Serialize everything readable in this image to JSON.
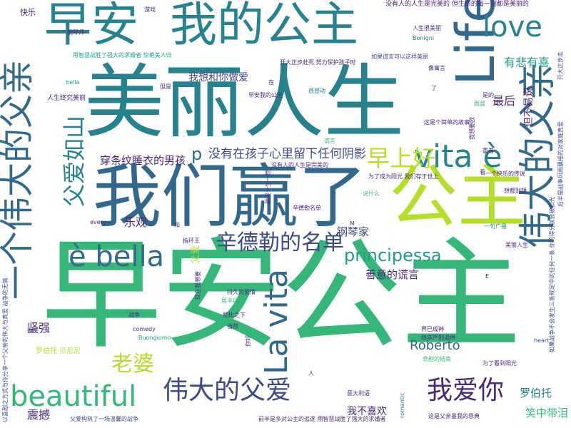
{
  "palette": {
    "purple": "#482878",
    "indigo": "#3e4989",
    "blue": "#31688e",
    "teal": "#26828e",
    "green": "#1f9e89",
    "mint": "#35b779",
    "lime": "#6ece58",
    "yellow": "#b5de2b",
    "gold": "#fde725"
  },
  "words": [
    {
      "text": "美丽人生",
      "color": "teal",
      "rotated": false
    },
    {
      "text": "早安公主",
      "color": "mint",
      "rotated": false
    },
    {
      "text": "我们赢了",
      "color": "blue",
      "rotated": false
    },
    {
      "text": "公主",
      "color": "yellow",
      "rotated": false
    },
    {
      "text": "早安",
      "color": "teal",
      "rotated": false
    },
    {
      "text": "我的公主",
      "color": "teal",
      "rotated": false
    },
    {
      "text": "Life",
      "color": "blue",
      "rotated": true
    },
    {
      "text": "一个伟大的父亲",
      "color": "blue",
      "rotated": true
    },
    {
      "text": "伟大的父亲",
      "color": "blue",
      "rotated": true
    },
    {
      "text": "La vita",
      "color": "blue",
      "rotated": true
    },
    {
      "text": "vita è",
      "color": "teal",
      "rotated": false
    },
    {
      "text": "è bella",
      "color": "blue",
      "rotated": false
    },
    {
      "text": "辛德勒的名单",
      "color": "indigo",
      "rotated": false
    },
    {
      "text": "beautiful",
      "color": "mint",
      "rotated": false
    },
    {
      "text": "伟大的父爱",
      "color": "indigo",
      "rotated": false
    },
    {
      "text": "我爱你",
      "color": "purple",
      "rotated": false
    },
    {
      "text": "love",
      "color": "teal",
      "rotated": false
    },
    {
      "text": "早上好",
      "color": "yellow",
      "rotated": false
    },
    {
      "text": "principessa",
      "color": "green",
      "rotated": false
    },
    {
      "text": "父爱如山",
      "color": "teal",
      "rotated": true
    },
    {
      "text": "老婆",
      "color": "yellow",
      "rotated": false
    },
    {
      "text": "没有在孩子心里留下任何阴影",
      "color": "indigo",
      "rotated": false
    },
    {
      "text": "穿条纹睡衣的男孩",
      "color": "purple",
      "rotated": false
    },
    {
      "text": "Roberto",
      "color": "blue",
      "rotated": false
    },
    {
      "text": "p",
      "color": "blue",
      "rotated": false
    },
    {
      "text": "善意的谎言",
      "color": "purple",
      "rotated": false
    },
    {
      "text": "有悲有喜",
      "color": "green",
      "rotated": false
    },
    {
      "text": "最后",
      "color": "purple",
      "rotated": false
    },
    {
      "text": "乐观",
      "color": "purple",
      "rotated": false
    },
    {
      "text": "钢琴家",
      "color": "indigo",
      "rotated": false
    },
    {
      "text": "坚强",
      "color": "purple",
      "rotated": false
    },
    {
      "text": "震撼",
      "color": "purple",
      "rotated": false
    },
    {
      "text": "罗伯托",
      "color": "teal",
      "rotated": false
    },
    {
      "text": "笑中带泪",
      "color": "mint",
      "rotated": false
    },
    {
      "text": "我不喜欢",
      "color": "purple",
      "rotated": false
    },
    {
      "text": "但不易说",
      "color": "purple",
      "rotated": true
    },
    {
      "text": "我想和你做爱",
      "color": "indigo",
      "rotated": false
    },
    {
      "text": "没有人的人生是完美的 但生命的每一刻都是美丽的",
      "color": "purple",
      "rotated": false
    },
    {
      "text": "快乐",
      "color": "purple",
      "rotated": false
    },
    {
      "text": "游戏",
      "color": "purple",
      "rotated": false
    },
    {
      "text": "钢琴师",
      "color": "purple",
      "rotated": false
    },
    {
      "text": "人生很美丽",
      "color": "purple",
      "rotated": false
    },
    {
      "text": "Benigni",
      "color": "teal",
      "rotated": false
    },
    {
      "text": "用智慧战胜了强大的求婚者 惊艳美人归",
      "color": "green",
      "rotated": false
    },
    {
      "text": "如果谎言可以这样美丽",
      "color": "indigo",
      "rotated": false
    },
    {
      "text": "开大正步赴死 努力保护孩子时",
      "color": "purple",
      "rotated": false
    },
    {
      "text": "在",
      "color": "purple",
      "rotated": false
    },
    {
      "text": "像寓言",
      "color": "purple",
      "rotated": false
    },
    {
      "text": "人生终究美丽",
      "color": "purple",
      "rotated": false
    },
    {
      "text": "早安我的公主",
      "color": "purple",
      "rotated": false
    },
    {
      "text": "很感动",
      "color": "teal",
      "rotated": false
    },
    {
      "text": "而且",
      "color": "green",
      "rotated": false
    },
    {
      "text": "这是个简单的故事",
      "color": "purple",
      "rotated": false
    },
    {
      "text": "没有人的人生是完美的",
      "color": "purple",
      "rotated": false
    },
    {
      "text": "为了成为阳光 我们存于世上",
      "color": "purple",
      "rotated": false
    },
    {
      "text": "一个快乐的传说",
      "color": "purple",
      "rotated": false
    },
    {
      "text": "想都别想",
      "color": "purple",
      "rotated": false
    },
    {
      "text": "辛德勒名单",
      "color": "purple",
      "rotated": false
    },
    {
      "text": "说什么",
      "color": "mint",
      "rotated": false
    },
    {
      "text": "一句广播",
      "color": "green",
      "rotated": false
    },
    {
      "text": "美丽人生",
      "color": "purple",
      "rotated": false
    },
    {
      "text": "指环王",
      "color": "purple",
      "rotated": false
    },
    {
      "text": "父爱",
      "color": "yellow",
      "rotated": true
    },
    {
      "text": "持久的爱情",
      "color": "purple",
      "rotated": false
    },
    {
      "text": "意大利语",
      "color": "purple",
      "rotated": false
    },
    {
      "text": "悲剧的结束",
      "color": "mint",
      "rotated": false
    },
    {
      "text": "为了看到阳光",
      "color": "purple",
      "rotated": false
    },
    {
      "text": "界已成神",
      "color": "purple",
      "rotated": false
    },
    {
      "text": "除非严刑逼供",
      "color": "purple",
      "rotated": false
    },
    {
      "text": "相比之下",
      "color": "purple",
      "rotated": false
    },
    {
      "text": "当然",
      "color": "purple",
      "rotated": false
    },
    {
      "text": "居半段",
      "color": "mint",
      "rotated": false
    },
    {
      "text": "comedy",
      "color": "purple",
      "rotated": false
    },
    {
      "text": "Buongiorno",
      "color": "green",
      "rotated": false
    },
    {
      "text": "战争",
      "color": "purple",
      "rotated": false
    },
    {
      "text": "微笑",
      "color": "purple",
      "rotated": false
    },
    {
      "text": "罗伯托 贝尼尼",
      "color": "yellow",
      "rotated": false
    },
    {
      "text": "父爱构筑了一场温馨的战争",
      "color": "indigo",
      "rotated": false
    },
    {
      "text": "前半是多对公主的追逐 用智慧战胜了强大的求婚者",
      "color": "purple",
      "rotated": false
    },
    {
      "text": "这是父亲墨我的恩典",
      "color": "purple",
      "rotated": false
    },
    {
      "text": "every",
      "color": "purple",
      "rotated": false
    },
    {
      "text": "heart",
      "color": "indigo",
      "rotated": false
    },
    {
      "text": "E",
      "color": "purple",
      "rotated": false
    },
    {
      "text": "M",
      "color": "purple",
      "rotated": false
    },
    {
      "text": "人",
      "color": "purple",
      "rotated": false
    },
    {
      "text": "和",
      "color": "purple",
      "rotated": false
    },
    {
      "text": "看",
      "color": "purple",
      "rotated": false
    },
    {
      "text": "了",
      "color": "purple",
      "rotated": false
    },
    {
      "text": "是的",
      "color": "purple",
      "rotated": false
    },
    {
      "text": "但是",
      "color": "purple",
      "rotated": false
    },
    {
      "text": "谎言",
      "color": "mint",
      "rotated": false
    },
    {
      "text": "重看",
      "color": "purple",
      "rotated": false
    },
    {
      "text": "bella",
      "color": "green",
      "rotated": false
    },
    {
      "text": "我想要欧",
      "color": "purple",
      "rotated": true
    },
    {
      "text": "现在我想要",
      "color": "purple",
      "rotated": true
    },
    {
      "text": "后半是战争风雨飘摇的对家庭真爱",
      "color": "indigo",
      "rotated": true
    },
    {
      "text": "以喜剧之方式与你分享一个父亲的伟大与真爱 战争的无情",
      "color": "indigo",
      "rotated": true
    },
    {
      "text": "你好",
      "color": "purple",
      "rotated": true
    },
    {
      "text": "romantic",
      "color": "teal",
      "rotated": true
    },
    {
      "text": "就是一生一世",
      "color": "purple",
      "rotated": true
    },
    {
      "text": "开大正步走",
      "color": "indigo",
      "rotated": true
    },
    {
      "text": "如果战争不会发生三条规定中的任何一条 你的得分就会被扣光",
      "color": "indigo",
      "rotated": true
    }
  ]
}
